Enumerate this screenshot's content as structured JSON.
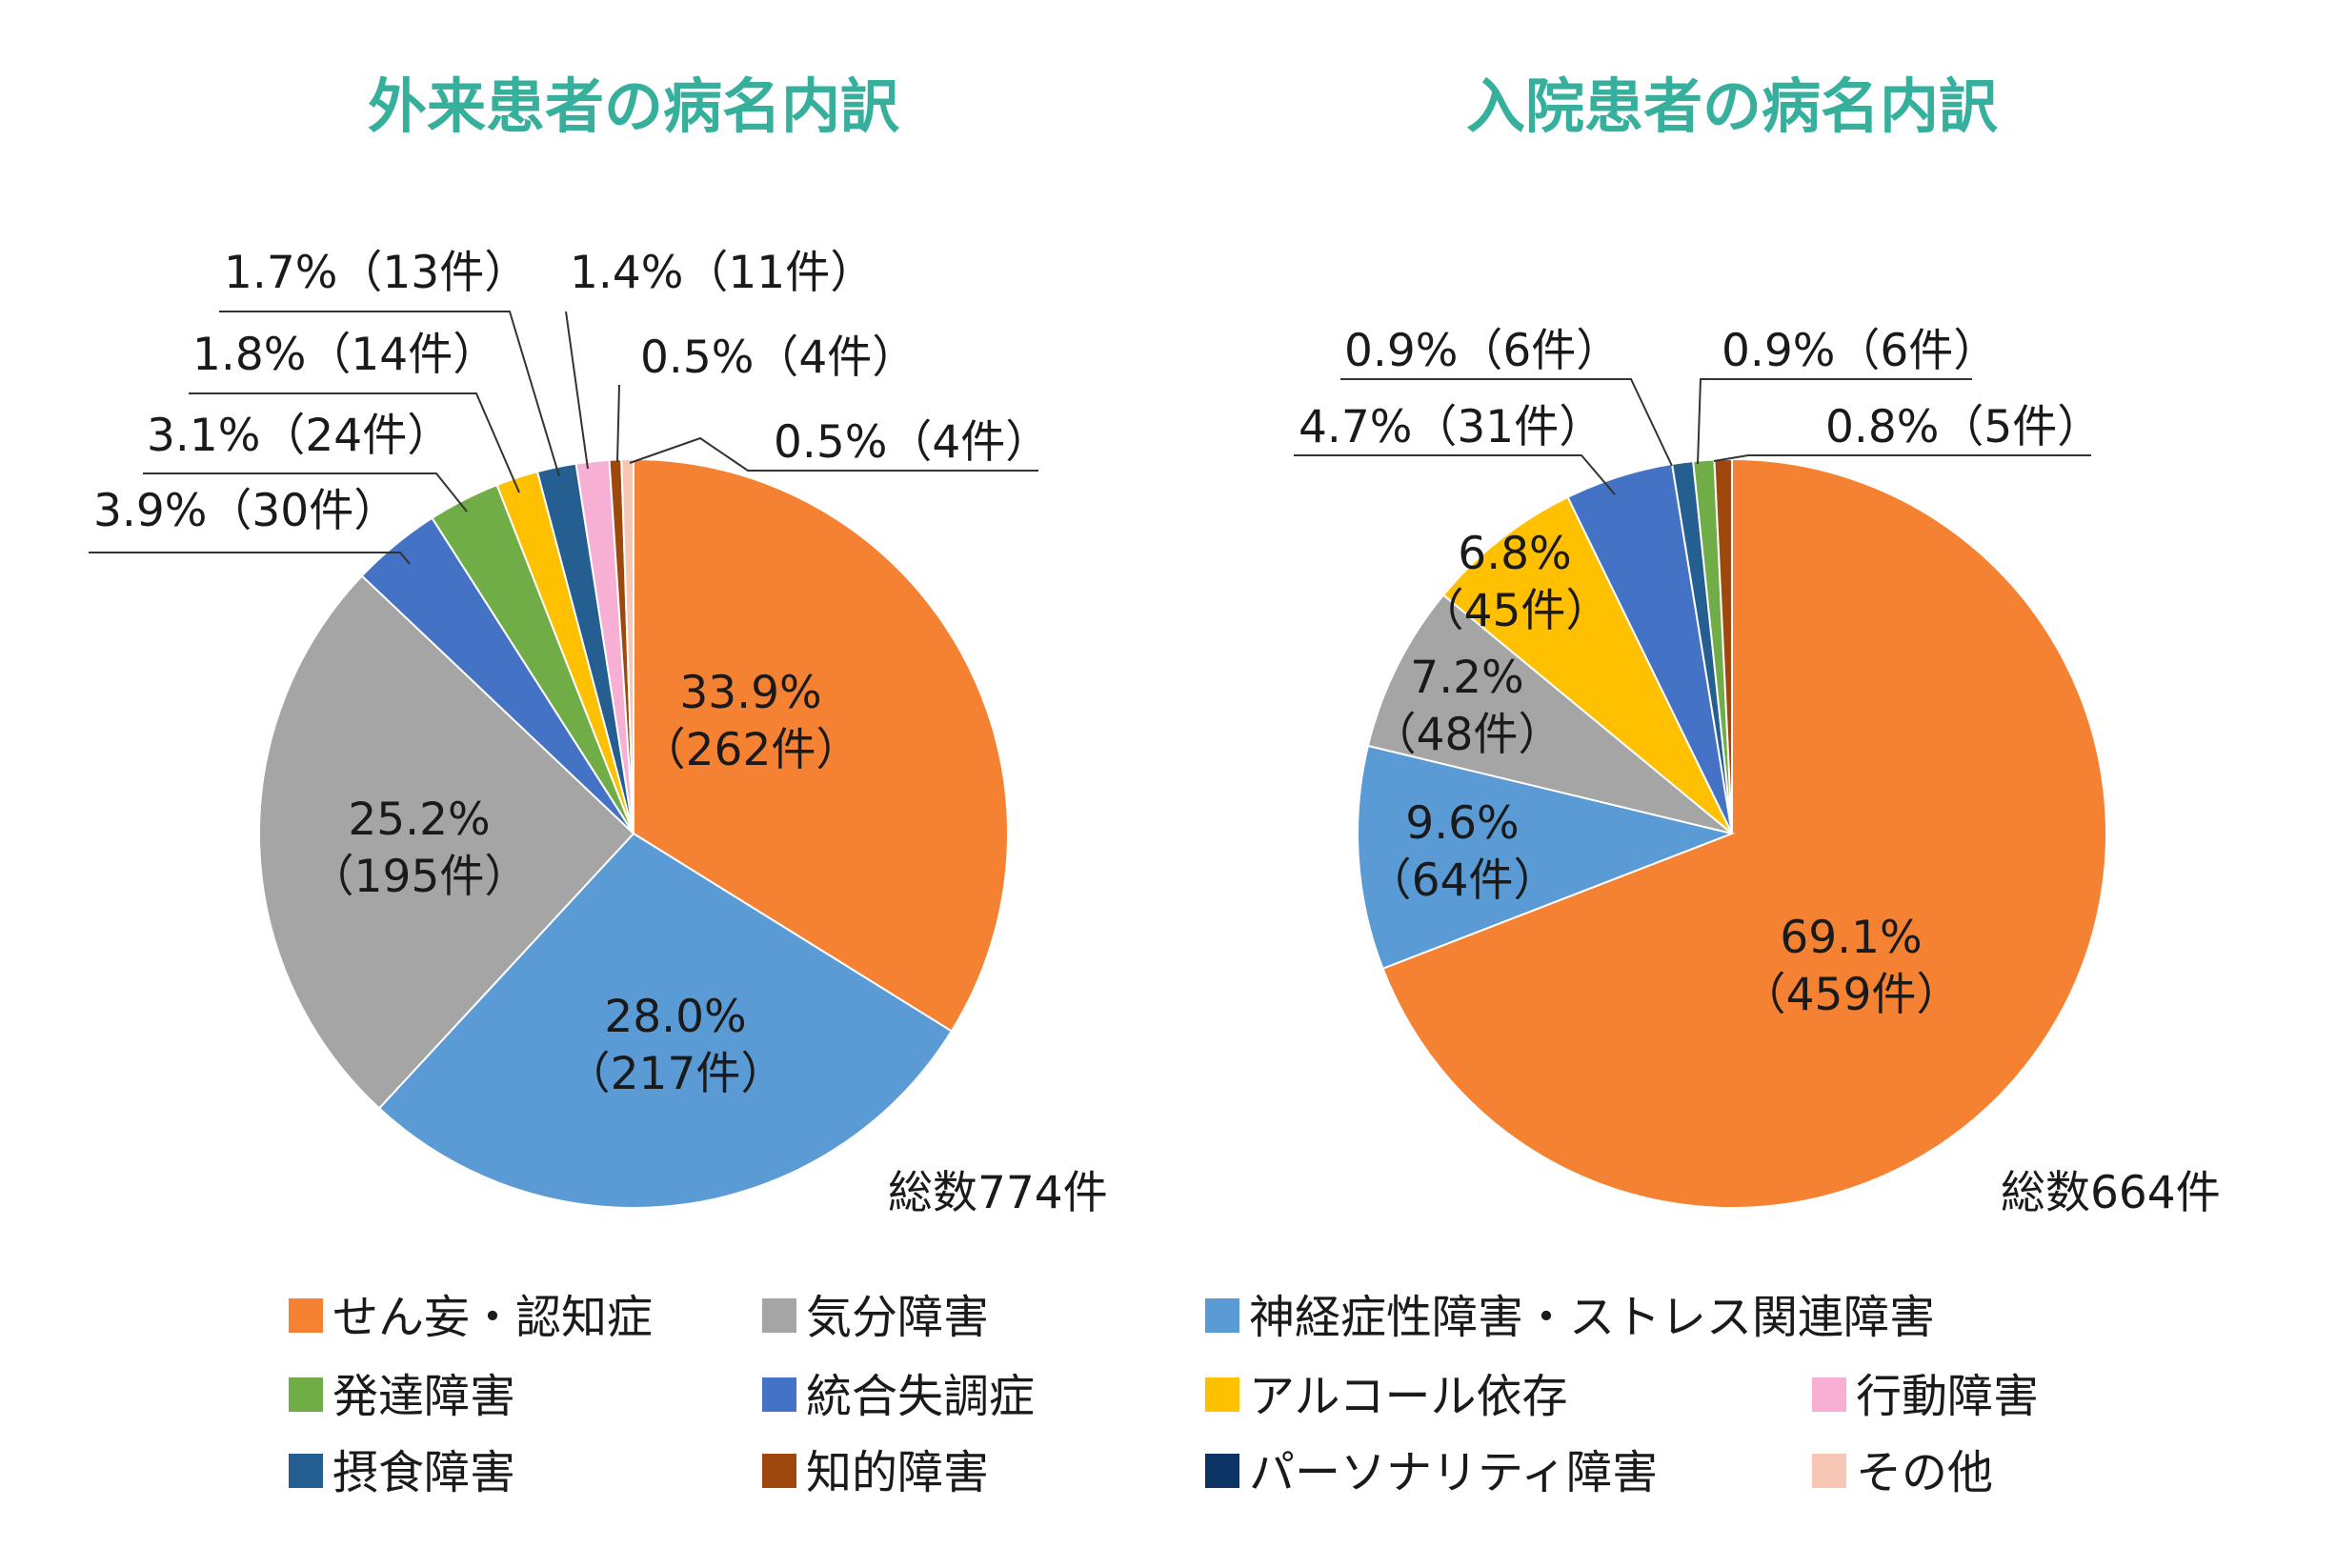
{
  "chart_data": [
    {
      "type": "pie",
      "title": "外来患者の病名内訳",
      "total_label": "総数774件",
      "slices": [
        {
          "category": "せん妄・認知症",
          "percent": 33.9,
          "count": 262,
          "label": [
            "33.9%",
            "（262件）"
          ]
        },
        {
          "category": "神経症性障害・ストレス関連障害",
          "percent": 28.0,
          "count": 217,
          "label": [
            "28.0%",
            "（217件）"
          ]
        },
        {
          "category": "気分障害",
          "percent": 25.2,
          "count": 195,
          "label": [
            "25.2%",
            "（195件）"
          ]
        },
        {
          "category": "統合失調症",
          "percent": 3.9,
          "count": 30,
          "label": [
            "3.9%（30件）"
          ]
        },
        {
          "category": "発達障害",
          "percent": 3.1,
          "count": 24,
          "label": [
            "3.1%（24件）"
          ]
        },
        {
          "category": "アルコール依存",
          "percent": 1.8,
          "count": 14,
          "label": [
            "1.8%（14件）"
          ]
        },
        {
          "category": "摂食障害",
          "percent": 1.7,
          "count": 13,
          "label": [
            "1.7%（13件）"
          ]
        },
        {
          "category": "行動障害",
          "percent": 1.4,
          "count": 11,
          "label": [
            "1.4%（11件）"
          ]
        },
        {
          "category": "知的障害",
          "percent": 0.5,
          "count": 4,
          "label": [
            "0.5%（4件）"
          ]
        },
        {
          "category": "その他",
          "percent": 0.5,
          "count": 4,
          "label": [
            "0.5%（4件）"
          ]
        }
      ]
    },
    {
      "type": "pie",
      "title": "入院患者の病名内訳",
      "total_label": "総数664件",
      "slices": [
        {
          "category": "せん妄・認知症",
          "percent": 69.1,
          "count": 459,
          "label": [
            "69.1%",
            "（459件）"
          ]
        },
        {
          "category": "神経症性障害・ストレス関連障害",
          "percent": 9.6,
          "count": 64,
          "label": [
            "9.6%",
            "（64件）"
          ]
        },
        {
          "category": "気分障害",
          "percent": 7.2,
          "count": 48,
          "label": [
            "7.2%",
            "（48件）"
          ]
        },
        {
          "category": "アルコール依存",
          "percent": 6.8,
          "count": 45,
          "label": [
            "6.8%",
            "（45件）"
          ]
        },
        {
          "category": "統合失調症",
          "percent": 4.7,
          "count": 31,
          "label": [
            "4.7%（31件）"
          ]
        },
        {
          "category": "摂食障害",
          "percent": 0.9,
          "count": 6,
          "label": [
            "0.9%（6件）"
          ]
        },
        {
          "category": "発達障害",
          "percent": 0.9,
          "count": 6,
          "label": [
            "0.9%（6件）"
          ]
        },
        {
          "category": "知的障害",
          "percent": 0.8,
          "count": 5,
          "label": [
            "0.8%（5件）"
          ]
        }
      ]
    }
  ],
  "legend": [
    {
      "label": "せん妄・認知症",
      "color": "#f58233"
    },
    {
      "label": "気分障害",
      "color": "#a5a5a5"
    },
    {
      "label": "神経症性障害・ストレス関連障害",
      "color": "#5b9bd5"
    },
    {
      "label": "発達障害",
      "color": "#70ad47"
    },
    {
      "label": "統合失調症",
      "color": "#4472c4"
    },
    {
      "label": "アルコール依存",
      "color": "#ffc000"
    },
    {
      "label": "行動障害",
      "color": "#f7b0d4"
    },
    {
      "label": "摂食障害",
      "color": "#255e91"
    },
    {
      "label": "知的障害",
      "color": "#9e480e"
    },
    {
      "label": "パーソナリティ障害",
      "color": "#0b3465"
    },
    {
      "label": "その他",
      "color": "#f8c6b4"
    }
  ]
}
